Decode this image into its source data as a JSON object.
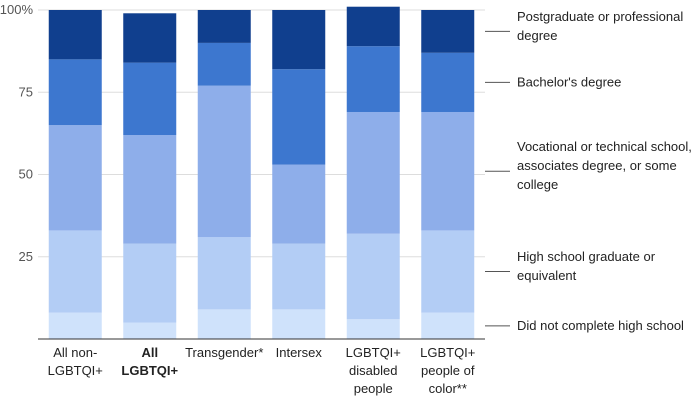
{
  "chart_data": {
    "type": "bar",
    "stacked": true,
    "categories": [
      {
        "lines": [
          "All non-",
          "LGBTQI+"
        ],
        "bold": false
      },
      {
        "lines": [
          "All",
          "LGBTQI+"
        ],
        "bold": true
      },
      {
        "lines": [
          "Transgender*"
        ],
        "bold": false
      },
      {
        "lines": [
          "Intersex"
        ],
        "bold": false
      },
      {
        "lines": [
          "LGBTQI+",
          "disabled",
          "people"
        ],
        "bold": false
      },
      {
        "lines": [
          "LGBTQI+",
          "people of",
          "color**"
        ],
        "bold": false
      }
    ],
    "series": [
      {
        "name_lines": [
          "Did not complete high school"
        ],
        "color": "#cfe2fb",
        "values": [
          8,
          5,
          9,
          9,
          6,
          8
        ]
      },
      {
        "name_lines": [
          "High school graduate or",
          "equivalent"
        ],
        "color": "#b3cdf5",
        "values": [
          25,
          24,
          22,
          20,
          26,
          25
        ]
      },
      {
        "name_lines": [
          "Vocational or technical school,",
          "associates degree, or some",
          "college"
        ],
        "color": "#8eaeea",
        "values": [
          32,
          33,
          46,
          24,
          37,
          36
        ]
      },
      {
        "name_lines": [
          "Bachelor's degree"
        ],
        "color": "#3d77cf",
        "values": [
          20,
          22,
          13,
          29,
          20,
          18
        ]
      },
      {
        "name_lines": [
          "Postgraduate or professional",
          "degree"
        ],
        "color": "#103f8e",
        "values": [
          15,
          15,
          10,
          18,
          12,
          13
        ]
      }
    ],
    "yticks": [
      {
        "value": 25,
        "label": "25"
      },
      {
        "value": 50,
        "label": "50"
      },
      {
        "value": 75,
        "label": "75"
      },
      {
        "value": 100,
        "label": "100%"
      }
    ],
    "ylim": [
      0,
      100
    ],
    "legend_placement": "right"
  }
}
